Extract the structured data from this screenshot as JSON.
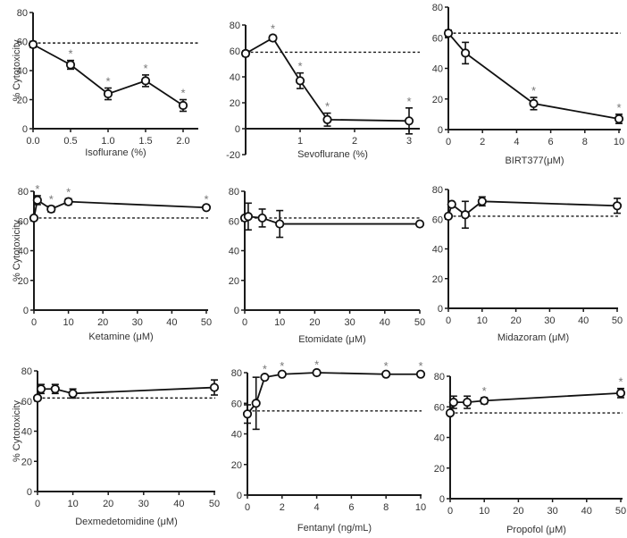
{
  "figure": {
    "reference_line": "dashed horizontal line at control cytotoxicity",
    "significance_marker": "*",
    "colors": {
      "line": "#111111",
      "marker_fill": "#ffffff",
      "star": "#777777",
      "text": "#333333"
    }
  },
  "chart_data": [
    {
      "id": "isoflurane",
      "type": "line",
      "title": "",
      "xlabel": "Isoflurane (%)",
      "ylabel": "% Cytotoxicity",
      "xlim": [
        0,
        2.0
      ],
      "ylim": [
        0,
        80
      ],
      "xticks": [
        0.0,
        0.5,
        1.0,
        1.5,
        2.0
      ],
      "xtick_labels": [
        "0.0",
        "0.5",
        "1.0",
        "1.5",
        "2.0"
      ],
      "yticks": [
        0,
        20,
        40,
        60,
        80
      ],
      "ytick_labels": [
        "0",
        "20",
        "40",
        "60",
        "80"
      ],
      "reference": 59,
      "grid": false,
      "series": [
        {
          "name": "Isoflurane",
          "x": [
            0.0,
            0.5,
            1.0,
            1.5,
            2.0
          ],
          "y": [
            58,
            44,
            24,
            33,
            16
          ],
          "err": [
            2,
            3,
            4,
            4,
            4
          ],
          "significant": [
            false,
            true,
            true,
            true,
            true
          ]
        }
      ]
    },
    {
      "id": "sevoflurane",
      "type": "line",
      "title": "",
      "xlabel": "Sevoflurane (%)",
      "ylabel": "",
      "xlim": [
        0,
        3
      ],
      "ylim": [
        -20,
        80
      ],
      "xticks": [
        1,
        2,
        3
      ],
      "xtick_labels": [
        "1",
        "2",
        "3"
      ],
      "yticks": [
        -20,
        0,
        20,
        40,
        60,
        80
      ],
      "ytick_labels": [
        "-20",
        "0",
        "20",
        "40",
        "60",
        "80"
      ],
      "reference": 59,
      "grid": false,
      "series": [
        {
          "name": "Sevoflurane",
          "x": [
            0,
            0.5,
            1.0,
            1.5,
            3.0
          ],
          "y": [
            58,
            70,
            37,
            7,
            6
          ],
          "err": [
            2,
            2,
            6,
            5,
            10
          ],
          "significant": [
            false,
            true,
            true,
            true,
            true
          ]
        }
      ]
    },
    {
      "id": "birt377",
      "type": "line",
      "title": "",
      "xlabel": "BIRT377(μM)",
      "ylabel": "",
      "xlim": [
        0,
        10
      ],
      "ylim": [
        0,
        80
      ],
      "xticks": [
        0,
        2,
        4,
        6,
        8,
        10
      ],
      "xtick_labels": [
        "0",
        "2",
        "4",
        "6",
        "8",
        "10"
      ],
      "yticks": [
        0,
        20,
        40,
        60,
        80
      ],
      "ytick_labels": [
        "0",
        "20",
        "40",
        "60",
        "80"
      ],
      "reference": 63,
      "grid": false,
      "series": [
        {
          "name": "BIRT377",
          "x": [
            0,
            1,
            5,
            10
          ],
          "y": [
            63,
            50,
            17,
            7
          ],
          "err": [
            2,
            7,
            4,
            3
          ],
          "significant": [
            false,
            false,
            true,
            true
          ]
        }
      ]
    },
    {
      "id": "ketamine",
      "type": "line",
      "title": "",
      "xlabel": "Ketamine (μM)",
      "ylabel": "% Cytotoxicity",
      "xlim": [
        0,
        50
      ],
      "ylim": [
        0,
        80
      ],
      "xticks": [
        0,
        10,
        20,
        30,
        40,
        50
      ],
      "xtick_labels": [
        "0",
        "10",
        "20",
        "30",
        "40",
        "50"
      ],
      "yticks": [
        0,
        20,
        40,
        60,
        80
      ],
      "ytick_labels": [
        "0",
        "20",
        "40",
        "60",
        "80"
      ],
      "reference": 62,
      "grid": false,
      "series": [
        {
          "name": "Ketamine",
          "x": [
            0,
            1,
            5,
            10,
            50
          ],
          "y": [
            62,
            74,
            68,
            73,
            69
          ],
          "err": [
            1,
            3,
            2,
            2,
            1
          ],
          "significant": [
            false,
            true,
            true,
            true,
            true
          ]
        }
      ]
    },
    {
      "id": "etomidate",
      "type": "line",
      "title": "",
      "xlabel": "Etomidate (μM)",
      "ylabel": "",
      "xlim": [
        0,
        50
      ],
      "ylim": [
        0,
        80
      ],
      "xticks": [
        0,
        10,
        20,
        30,
        40,
        50
      ],
      "xtick_labels": [
        "0",
        "10",
        "20",
        "30",
        "40",
        "50"
      ],
      "yticks": [
        0,
        20,
        40,
        60,
        80
      ],
      "ytick_labels": [
        "0",
        "20",
        "40",
        "60",
        "80"
      ],
      "reference": 62,
      "grid": false,
      "series": [
        {
          "name": "Etomidate",
          "x": [
            0,
            1,
            5,
            10,
            50
          ],
          "y": [
            62,
            63,
            62,
            58,
            58
          ],
          "err": [
            1,
            9,
            6,
            9,
            1
          ],
          "significant": [
            false,
            false,
            false,
            false,
            false
          ]
        }
      ]
    },
    {
      "id": "midazoram",
      "type": "line",
      "title": "",
      "xlabel": "Midazoram (μM)",
      "ylabel": "",
      "xlim": [
        0,
        50
      ],
      "ylim": [
        0,
        80
      ],
      "xticks": [
        0,
        10,
        20,
        30,
        40,
        50
      ],
      "xtick_labels": [
        "0",
        "10",
        "20",
        "30",
        "40",
        "50"
      ],
      "yticks": [
        0,
        20,
        40,
        60,
        80
      ],
      "ytick_labels": [
        "0",
        "20",
        "40",
        "60",
        "80"
      ],
      "reference": 62,
      "grid": false,
      "series": [
        {
          "name": "Midazoram",
          "x": [
            0,
            1,
            5,
            10,
            50
          ],
          "y": [
            62,
            70,
            63,
            72,
            69
          ],
          "err": [
            1,
            1,
            9,
            3,
            5
          ],
          "significant": [
            false,
            false,
            false,
            false,
            false
          ]
        }
      ]
    },
    {
      "id": "dexmedetomidine",
      "type": "line",
      "title": "",
      "xlabel": "Dexmedetomidine (μM)",
      "ylabel": "% Cytotoxicity",
      "xlim": [
        0,
        50
      ],
      "ylim": [
        0,
        80
      ],
      "xticks": [
        0,
        10,
        20,
        30,
        40,
        50
      ],
      "xtick_labels": [
        "0",
        "10",
        "20",
        "30",
        "40",
        "50"
      ],
      "yticks": [
        0,
        20,
        40,
        60,
        80
      ],
      "ytick_labels": [
        "0",
        "20",
        "40",
        "60",
        "80"
      ],
      "reference": 62,
      "grid": false,
      "series": [
        {
          "name": "Dexmedetomidine",
          "x": [
            0,
            1,
            5,
            10,
            50
          ],
          "y": [
            62,
            68,
            68,
            65,
            69
          ],
          "err": [
            1,
            3,
            3,
            3,
            5
          ],
          "significant": [
            false,
            false,
            false,
            false,
            false
          ]
        }
      ]
    },
    {
      "id": "fentanyl",
      "type": "line",
      "title": "",
      "xlabel": "Fentanyl (ng/mL)",
      "ylabel": "",
      "xlim": [
        0,
        10
      ],
      "ylim": [
        0,
        80
      ],
      "xticks": [
        0,
        2,
        4,
        6,
        8,
        10
      ],
      "xtick_labels": [
        "0",
        "2",
        "4",
        "6",
        "8",
        "10"
      ],
      "yticks": [
        0,
        20,
        40,
        60,
        80
      ],
      "ytick_labels": [
        "0",
        "20",
        "40",
        "60",
        "80"
      ],
      "reference": 55,
      "grid": false,
      "series": [
        {
          "name": "Fentanyl",
          "x": [
            0,
            0.5,
            1,
            2,
            4,
            8,
            10
          ],
          "y": [
            53,
            60,
            77,
            79,
            80,
            79,
            79
          ],
          "err": [
            6,
            17,
            1,
            1,
            1,
            1,
            1
          ],
          "significant": [
            false,
            false,
            true,
            true,
            true,
            true,
            true
          ]
        }
      ]
    },
    {
      "id": "propofol",
      "type": "line",
      "title": "",
      "xlabel": "Propofol (μM)",
      "ylabel": "",
      "xlim": [
        0,
        50
      ],
      "ylim": [
        0,
        80
      ],
      "xticks": [
        0,
        10,
        20,
        30,
        40,
        50
      ],
      "xtick_labels": [
        "0",
        "10",
        "20",
        "30",
        "40",
        "50"
      ],
      "yticks": [
        0,
        20,
        40,
        60,
        80
      ],
      "ytick_labels": [
        "0",
        "20",
        "40",
        "60",
        "80"
      ],
      "reference": 56,
      "grid": false,
      "series": [
        {
          "name": "Propofol",
          "x": [
            0,
            1,
            5,
            10,
            50
          ],
          "y": [
            56,
            63,
            63,
            64,
            69
          ],
          "err": [
            1,
            4,
            4,
            2,
            3
          ],
          "significant": [
            false,
            false,
            false,
            true,
            true
          ]
        }
      ]
    }
  ]
}
